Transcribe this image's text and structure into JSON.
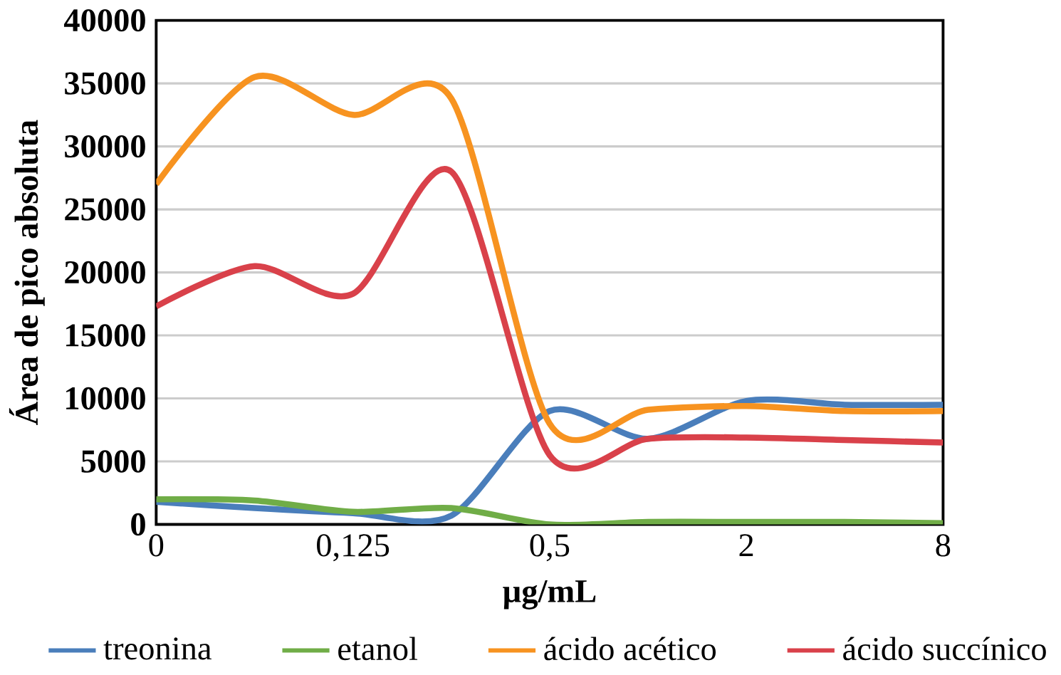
{
  "chart_data": {
    "type": "line",
    "xlabel": "µg/mL",
    "ylabel": "Área de pico absoluta",
    "categories": [
      "0",
      null,
      "0,125",
      null,
      "0,5",
      null,
      "2",
      null,
      "8"
    ],
    "series": [
      {
        "name": "treonina",
        "color": "#4a7ebb",
        "values": [
          1800,
          1300,
          900,
          700,
          9000,
          6800,
          9800,
          9500,
          9500
        ]
      },
      {
        "name": "etanol",
        "color": "#70ad47",
        "values": [
          2000,
          1900,
          1000,
          1300,
          0,
          200,
          200,
          200,
          100
        ]
      },
      {
        "name": "ácido acético",
        "color": "#f79320",
        "values": [
          27000,
          35500,
          32500,
          33800,
          8000,
          9100,
          9400,
          9000,
          9000
        ]
      },
      {
        "name": "ácido succínico",
        "color": "#d9414a",
        "values": [
          17300,
          20500,
          18300,
          28000,
          5500,
          6800,
          6900,
          6700,
          6500
        ]
      }
    ],
    "ylim": [
      0,
      40000
    ],
    "yticks": [
      0,
      5000,
      10000,
      15000,
      20000,
      25000,
      30000,
      35000,
      40000
    ],
    "grid": "y",
    "legend": "bottom",
    "line_style": "solid",
    "marker": "none"
  }
}
